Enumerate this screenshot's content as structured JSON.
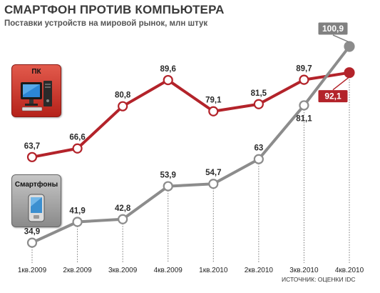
{
  "header": {
    "title": "СМАРТФОН ПРОТИВ КОМПЬЮТЕРА",
    "subtitle": "Поставки устройств на мировой рынок, млн штук"
  },
  "legend": {
    "pc_label": "ПК",
    "phone_label": "Смартфоны"
  },
  "source": "ИСТОЧНИК: ОЦЕНКИ IDC",
  "colors": {
    "pc": "#b3232a",
    "phone": "#8c8c8c",
    "pc_last_box": "#b3232a",
    "phone_last_box": "#808080"
  },
  "chart_data": {
    "type": "line",
    "categories": [
      "1кв.2009",
      "2кв.2009",
      "3кв.2009",
      "4кв.2009",
      "1кв.2010",
      "2кв.2010",
      "3кв.2010",
      "4кв.2010"
    ],
    "series": [
      {
        "name": "ПК",
        "values": [
          63.7,
          66.6,
          80.8,
          89.6,
          79.1,
          81.5,
          89.7,
          92.1
        ],
        "labels": [
          "63,7",
          "66,6",
          "80,8",
          "89,6",
          "79,1",
          "81,5",
          "89,7",
          "92,1"
        ]
      },
      {
        "name": "Смартфоны",
        "values": [
          34.9,
          41.9,
          42.8,
          53.9,
          54.7,
          63,
          81.1,
          100.9
        ],
        "labels": [
          "34,9",
          "41,9",
          "42,8",
          "53,9",
          "54,7",
          "63",
          "81,1",
          "100,9"
        ]
      }
    ],
    "ylim": [
      30,
      105
    ],
    "grid": false
  }
}
